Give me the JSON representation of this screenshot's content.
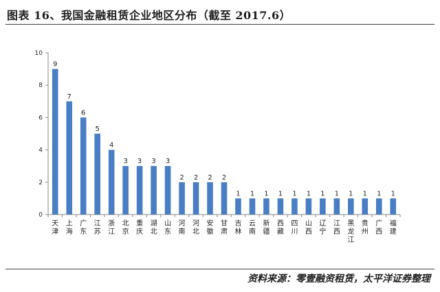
{
  "figure": {
    "title": "图表 16、我国金融租赁企业地区分布（截至 2017.6）",
    "source": "资料来源：零壹融资租赁，太平洋证券整理"
  },
  "colors": {
    "bar": "#4a7ec4",
    "axis": "#8a8a8a",
    "rule": "#3d3d3d"
  },
  "chart_data": {
    "type": "bar",
    "title": "",
    "xlabel": "",
    "ylabel": "",
    "ylim": [
      0,
      10
    ],
    "yticks": [
      0,
      2,
      4,
      6,
      8,
      10
    ],
    "grid": false,
    "legend": "none",
    "categories": [
      "天津",
      "上海",
      "广东",
      "江苏",
      "浙江",
      "北京",
      "重庆",
      "湖北",
      "山东",
      "河南",
      "河北",
      "安徽",
      "甘肃",
      "吉林",
      "云南",
      "新疆",
      "西藏",
      "四川",
      "山西",
      "辽宁",
      "江西",
      "黑龙江",
      "贵州",
      "广西",
      "福建"
    ],
    "values": [
      9,
      7,
      6,
      5,
      4,
      3,
      3,
      3,
      3,
      2,
      2,
      2,
      2,
      1,
      1,
      1,
      1,
      1,
      1,
      1,
      1,
      1,
      1,
      1,
      1
    ]
  }
}
